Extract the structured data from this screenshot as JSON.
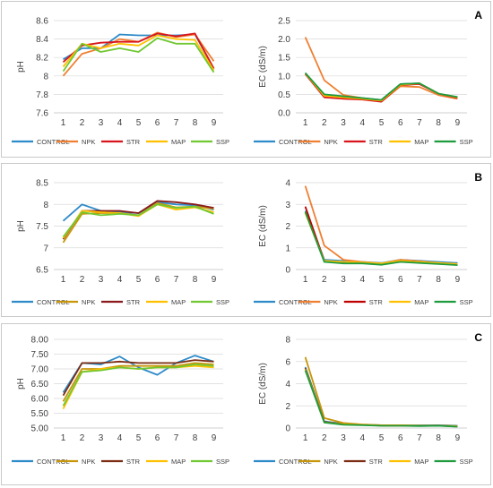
{
  "figure": {
    "panels": [
      {
        "letter": "A",
        "chart_ids": [
          0,
          1
        ]
      },
      {
        "letter": "B",
        "chart_ids": [
          2,
          3
        ]
      },
      {
        "letter": "C",
        "chart_ids": [
          4,
          5
        ]
      }
    ]
  },
  "series_colors": {
    "CONTROL": "#2E8BC9",
    "NPK": "#F07F32",
    "STR": "#D9141C",
    "MAP": "#FFC000",
    "SSP": "#70C832"
  },
  "chart_data": [
    {
      "type": "line",
      "title": "",
      "xlabel": "",
      "ylabel": "pH",
      "categories": [
        "1",
        "2",
        "3",
        "4",
        "5",
        "6",
        "7",
        "8",
        "9"
      ],
      "ylim": [
        7.6,
        8.6
      ],
      "yticks": [
        "7.6",
        "7.8",
        "8",
        "8.2",
        "8.4",
        "8.6"
      ],
      "grid": true,
      "legend": "bottom",
      "series": [
        {
          "name": "CONTROL",
          "color": "#2E8BC9",
          "values": [
            8.18,
            8.3,
            8.3,
            8.45,
            8.44,
            8.44,
            8.44,
            8.45,
            8.08
          ]
        },
        {
          "name": "NPK",
          "color": "#F07F32",
          "values": [
            8.0,
            8.24,
            8.3,
            8.4,
            8.37,
            8.47,
            8.42,
            8.45,
            8.16
          ]
        },
        {
          "name": "STR",
          "color": "#D9141C",
          "values": [
            8.15,
            8.33,
            8.36,
            8.37,
            8.37,
            8.46,
            8.43,
            8.46,
            8.08
          ]
        },
        {
          "name": "MAP",
          "color": "#FFC000",
          "values": [
            8.1,
            8.35,
            8.3,
            8.35,
            8.33,
            8.44,
            8.4,
            8.39,
            8.06
          ]
        },
        {
          "name": "SSP",
          "color": "#70C832",
          "values": [
            8.05,
            8.35,
            8.26,
            8.3,
            8.26,
            8.41,
            8.35,
            8.35,
            8.04
          ]
        }
      ]
    },
    {
      "type": "line",
      "title": "",
      "xlabel": "",
      "ylabel": "EC (dS/m)",
      "categories": [
        "1",
        "2",
        "3",
        "4",
        "5",
        "6",
        "7",
        "8",
        "9"
      ],
      "ylim": [
        0,
        2.5
      ],
      "yticks": [
        "0.0",
        "0.5",
        "1.0",
        "1.5",
        "2.0",
        "2.5"
      ],
      "grid": true,
      "legend": "bottom",
      "series": [
        {
          "name": "CONTROL",
          "color": "#2E8BC9",
          "values": [
            1.08,
            0.48,
            0.45,
            0.4,
            0.35,
            0.78,
            0.8,
            0.52,
            0.42
          ]
        },
        {
          "name": "NPK",
          "color": "#F07F32",
          "values": [
            2.05,
            0.88,
            0.48,
            0.4,
            0.3,
            0.72,
            0.7,
            0.48,
            0.38
          ]
        },
        {
          "name": "STR",
          "color": "#D9141C",
          "values": [
            1.05,
            0.42,
            0.38,
            0.36,
            0.3,
            0.75,
            0.78,
            0.52,
            0.4
          ]
        },
        {
          "name": "MAP",
          "color": "#FFC000",
          "values": [
            1.07,
            0.46,
            0.42,
            0.38,
            0.33,
            0.76,
            0.8,
            0.52,
            0.42
          ]
        },
        {
          "name": "SSP",
          "color": "#1E9B3C",
          "values": [
            1.08,
            0.5,
            0.45,
            0.4,
            0.35,
            0.78,
            0.8,
            0.52,
            0.43
          ]
        }
      ]
    },
    {
      "type": "line",
      "title": "",
      "xlabel": "",
      "ylabel": "pH",
      "categories": [
        "1",
        "2",
        "3",
        "4",
        "5",
        "6",
        "7",
        "8",
        "9"
      ],
      "ylim": [
        6.5,
        8.5
      ],
      "yticks": [
        "6.5",
        "7",
        "7.5",
        "8",
        "8.5"
      ],
      "grid": true,
      "legend": "bottom",
      "series": [
        {
          "name": "CONTROL",
          "color": "#2E8BC9",
          "values": [
            7.62,
            8.0,
            7.85,
            7.82,
            7.8,
            8.05,
            8.0,
            7.98,
            7.88
          ]
        },
        {
          "name": "NPK",
          "color": "#C8960A",
          "values": [
            7.12,
            7.78,
            7.8,
            7.8,
            7.75,
            8.03,
            7.93,
            7.95,
            7.9
          ]
        },
        {
          "name": "STR",
          "color": "#8B1A1A",
          "values": [
            7.2,
            7.85,
            7.85,
            7.85,
            7.8,
            8.08,
            8.05,
            8.0,
            7.92
          ]
        },
        {
          "name": "MAP",
          "color": "#FFC000",
          "values": [
            7.22,
            7.85,
            7.82,
            7.8,
            7.73,
            8.0,
            7.88,
            7.93,
            7.82
          ]
        },
        {
          "name": "SSP",
          "color": "#70C832",
          "values": [
            7.25,
            7.82,
            7.75,
            7.78,
            7.75,
            8.0,
            7.92,
            7.95,
            7.78
          ]
        }
      ]
    },
    {
      "type": "line",
      "title": "",
      "xlabel": "",
      "ylabel": "EC (dS/m)",
      "categories": [
        "1",
        "2",
        "3",
        "4",
        "5",
        "6",
        "7",
        "8",
        "9"
      ],
      "ylim": [
        0,
        4
      ],
      "yticks": [
        "0",
        "1",
        "2",
        "3",
        "4"
      ],
      "grid": true,
      "legend": "bottom",
      "series": [
        {
          "name": "CONTROL",
          "color": "#2E8BC9",
          "values": [
            2.7,
            0.45,
            0.4,
            0.35,
            0.3,
            0.45,
            0.4,
            0.35,
            0.3
          ]
        },
        {
          "name": "NPK",
          "color": "#F07F32",
          "values": [
            3.85,
            1.1,
            0.45,
            0.35,
            0.28,
            0.45,
            0.38,
            0.3,
            0.25
          ]
        },
        {
          "name": "STR",
          "color": "#C00000",
          "values": [
            2.9,
            0.4,
            0.3,
            0.3,
            0.25,
            0.4,
            0.35,
            0.28,
            0.22
          ]
        },
        {
          "name": "MAP",
          "color": "#FFC000",
          "values": [
            2.6,
            0.4,
            0.35,
            0.32,
            0.28,
            0.4,
            0.35,
            0.3,
            0.25
          ]
        },
        {
          "name": "SSP",
          "color": "#1E9B3C",
          "values": [
            2.65,
            0.35,
            0.28,
            0.28,
            0.22,
            0.35,
            0.3,
            0.25,
            0.2
          ]
        }
      ]
    },
    {
      "type": "line",
      "title": "",
      "xlabel": "",
      "ylabel": "pH",
      "categories": [
        "1",
        "2",
        "3",
        "4",
        "5",
        "6",
        "7",
        "8",
        "9"
      ],
      "ylim": [
        5.0,
        8.0
      ],
      "yticks": [
        "5.00",
        "5.50",
        "6.00",
        "6.50",
        "7.00",
        "7.50",
        "8.00"
      ],
      "grid": true,
      "legend": "bottom",
      "series": [
        {
          "name": "CONTROL",
          "color": "#2E8BC9",
          "values": [
            6.2,
            7.2,
            7.15,
            7.42,
            7.05,
            6.8,
            7.2,
            7.45,
            7.25
          ]
        },
        {
          "name": "NPK",
          "color": "#C8960A",
          "values": [
            5.9,
            7.0,
            7.0,
            7.1,
            7.1,
            7.1,
            7.1,
            7.2,
            7.15
          ]
        },
        {
          "name": "STR",
          "color": "#7B2C12",
          "values": [
            6.1,
            7.2,
            7.2,
            7.25,
            7.2,
            7.2,
            7.2,
            7.3,
            7.25
          ]
        },
        {
          "name": "MAP",
          "color": "#FFC000",
          "values": [
            5.65,
            6.9,
            7.0,
            7.05,
            7.0,
            7.05,
            7.05,
            7.1,
            7.05
          ]
        },
        {
          "name": "SSP",
          "color": "#70C832",
          "values": [
            5.75,
            6.9,
            6.95,
            7.05,
            7.0,
            7.05,
            7.05,
            7.15,
            7.1
          ]
        }
      ]
    },
    {
      "type": "line",
      "title": "",
      "xlabel": "",
      "ylabel": "EC (dS/m)",
      "categories": [
        "1",
        "2",
        "3",
        "4",
        "5",
        "6",
        "7",
        "8",
        "9"
      ],
      "ylim": [
        0,
        8
      ],
      "yticks": [
        "0",
        "2",
        "4",
        "6",
        "8"
      ],
      "grid": true,
      "legend": "bottom",
      "series": [
        {
          "name": "CONTROL",
          "color": "#2E8BC9",
          "values": [
            5.5,
            0.6,
            0.4,
            0.3,
            0.25,
            0.25,
            0.25,
            0.25,
            0.2
          ]
        },
        {
          "name": "NPK",
          "color": "#C8960A",
          "values": [
            6.4,
            0.9,
            0.45,
            0.32,
            0.25,
            0.25,
            0.22,
            0.22,
            0.18
          ]
        },
        {
          "name": "STR",
          "color": "#7B2C12",
          "values": [
            5.4,
            0.55,
            0.35,
            0.28,
            0.22,
            0.22,
            0.2,
            0.22,
            0.15
          ]
        },
        {
          "name": "MAP",
          "color": "#FFC000",
          "values": [
            5.3,
            0.5,
            0.35,
            0.28,
            0.22,
            0.22,
            0.2,
            0.2,
            0.15
          ]
        },
        {
          "name": "SSP",
          "color": "#1E9B3C",
          "values": [
            5.2,
            0.5,
            0.3,
            0.25,
            0.2,
            0.2,
            0.18,
            0.2,
            0.12
          ]
        }
      ]
    }
  ]
}
